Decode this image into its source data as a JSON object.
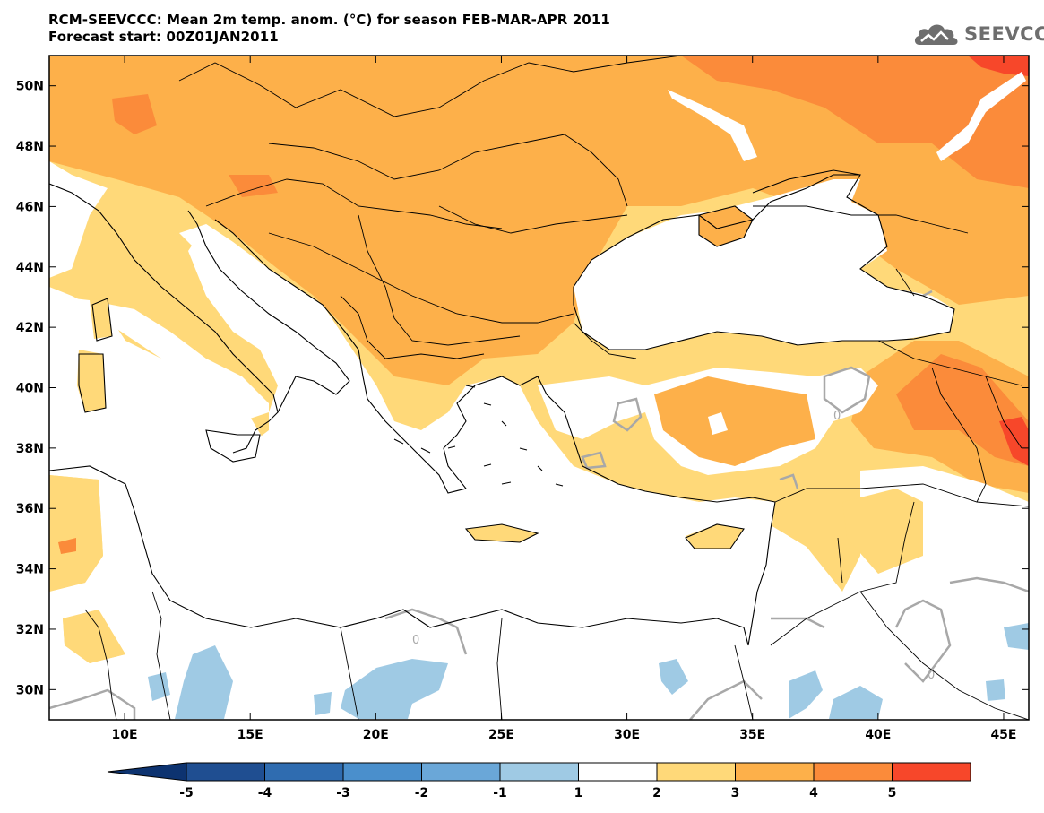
{
  "header": {
    "line1": "RCM-SEEVCCC: Mean 2m temp. anom. (°C) for season FEB-MAR-APR 2011",
    "line2": "Forecast start: 00Z01JAN2011"
  },
  "logo": {
    "text": "SEEVCCC",
    "icon": "cloud-icon"
  },
  "map": {
    "lon_range": [
      7,
      46
    ],
    "lat_range": [
      29,
      51
    ],
    "lat_ticks": [
      "30N",
      "32N",
      "34N",
      "36N",
      "38N",
      "40N",
      "42N",
      "44N",
      "46N",
      "48N",
      "50N"
    ],
    "lat_values": [
      30,
      32,
      34,
      36,
      38,
      40,
      42,
      44,
      46,
      48,
      50
    ],
    "lon_ticks": [
      "10E",
      "15E",
      "20E",
      "25E",
      "30E",
      "35E",
      "40E",
      "45E"
    ],
    "lon_values": [
      10,
      15,
      20,
      25,
      30,
      35,
      40,
      45
    ],
    "contour_label": "0"
  },
  "colorbar": {
    "labels": [
      "-5",
      "-4",
      "-3",
      "-2",
      "-1",
      "1",
      "2",
      "3",
      "4",
      "5"
    ],
    "colors": [
      "#1f4e91",
      "#2f6cb0",
      "#4a8fcc",
      "#6aa7d8",
      "#9fcae4",
      "#ffffff",
      "#ffd979",
      "#fdb04a",
      "#fb8b3a",
      "#f7472a",
      "#d21c1c",
      "#0d3370"
    ]
  }
}
